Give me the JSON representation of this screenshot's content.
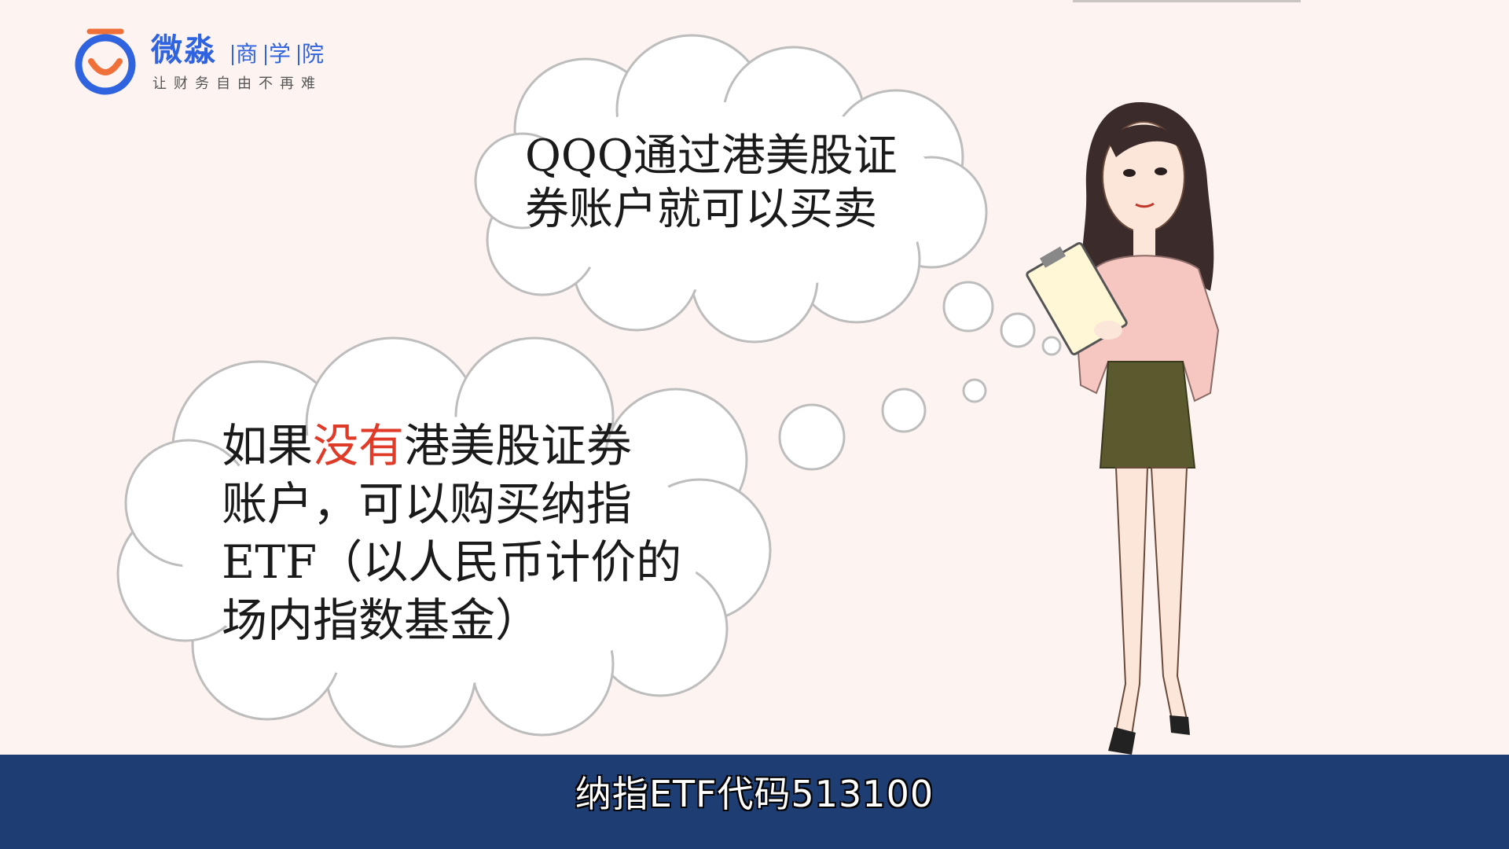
{
  "logo": {
    "name": "微淼",
    "school_chars": [
      "商",
      "学",
      "院"
    ],
    "slogan": "让财务自由不再难",
    "brand_color": "#2f63e0",
    "accent_color": "#f0703a"
  },
  "bubbles": {
    "top": {
      "line1": "QQQ通过港美股证",
      "line2": "券账户就可以买卖"
    },
    "bottom": {
      "line1_pre": "如果",
      "line1_highlight": "没有",
      "line1_post": "港美股证券",
      "line2": "账户，可以购买纳指",
      "line3": "ETF（以人民币计价的",
      "line4": "场内指数基金）",
      "highlight_color": "#e03a28"
    }
  },
  "caption": {
    "text": "纳指ETF代码513100",
    "bar_color": "#1e3d73"
  }
}
